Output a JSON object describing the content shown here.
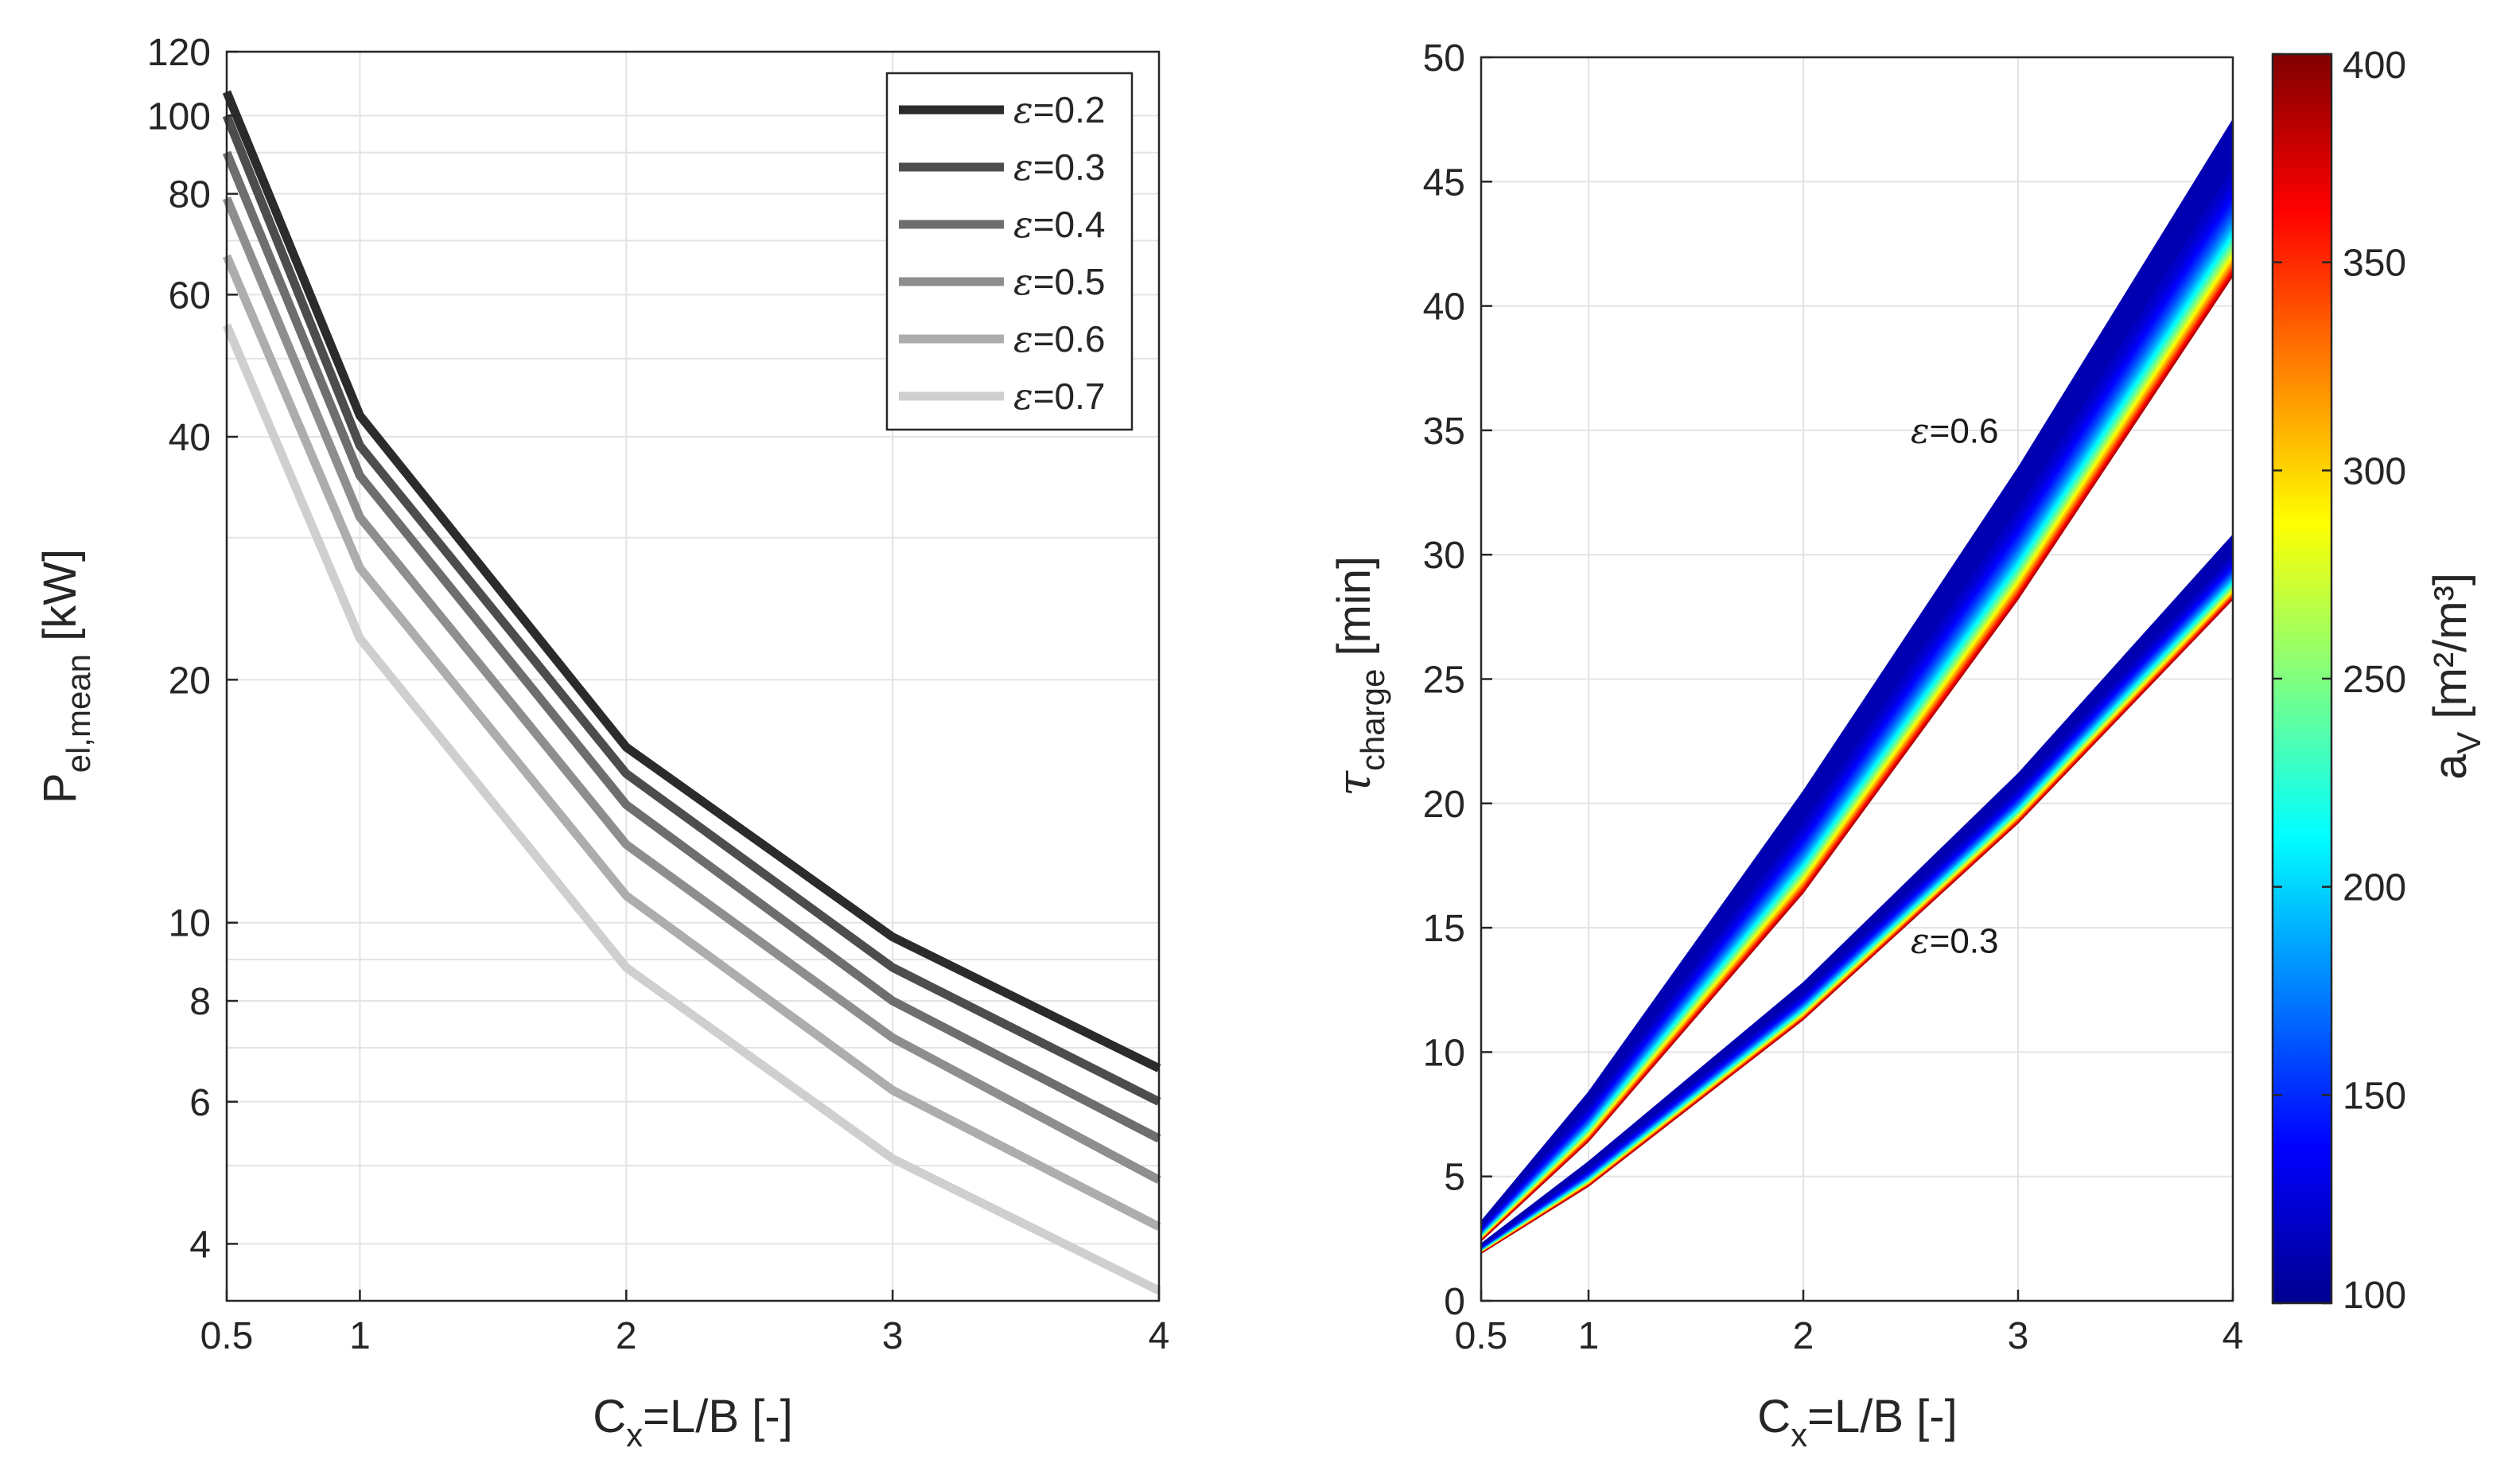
{
  "colors": {
    "grid": "#e3e3e3",
    "axis": "#262626",
    "series": [
      "#2b2b2b",
      "#4d4d4d",
      "#6e6e6e",
      "#8e8e8e",
      "#adadad",
      "#cfcfcf"
    ]
  },
  "chart_data": [
    {
      "type": "line",
      "yscale": "log",
      "title": "",
      "xlabel_main": "C",
      "xlabel_sub": "x",
      "xlabel_rest": "=L/B [-]",
      "ylabel_main": "P",
      "ylabel_sub": "el,mean",
      "ylabel_rest": " [kW]",
      "xlim": [
        0.5,
        4
      ],
      "ylim": [
        3.4,
        120
      ],
      "xticks": [
        0.5,
        1,
        2,
        3,
        4
      ],
      "xtick_labels": [
        "0.5",
        "1",
        "2",
        "3",
        "4"
      ],
      "yticks": [
        4,
        6,
        8,
        10,
        20,
        40,
        60,
        80,
        100,
        120
      ],
      "ytick_labels": [
        "4",
        "6",
        "8",
        "10",
        "20",
        "40",
        "60",
        "80",
        "100",
        "120"
      ],
      "legend_position": "top-right",
      "x": [
        0.5,
        1,
        2,
        3,
        4
      ],
      "series": [
        {
          "name": "ε=0.2",
          "eps_symbol": "ε",
          "eps_value": "=0.2",
          "values": [
            107,
            42.5,
            16.5,
            9.6,
            6.6
          ]
        },
        {
          "name": "ε=0.3",
          "eps_symbol": "ε",
          "eps_value": "=0.3",
          "values": [
            100,
            39.0,
            15.3,
            8.8,
            6.0
          ]
        },
        {
          "name": "ε=0.4",
          "eps_symbol": "ε",
          "eps_value": "=0.4",
          "values": [
            90,
            35.8,
            14.0,
            8.0,
            5.4
          ]
        },
        {
          "name": "ε=0.5",
          "eps_symbol": "ε",
          "eps_value": "=0.5",
          "values": [
            79,
            31.8,
            12.5,
            7.2,
            4.8
          ]
        },
        {
          "name": "ε=0.6",
          "eps_symbol": "ε",
          "eps_value": "=0.6",
          "values": [
            67,
            27.5,
            10.8,
            6.2,
            4.2
          ]
        },
        {
          "name": "ε=0.7",
          "eps_symbol": "ε",
          "eps_value": "=0.7",
          "values": [
            55,
            22.5,
            8.8,
            5.1,
            3.5
          ]
        }
      ]
    },
    {
      "type": "area",
      "title": "",
      "xlabel_main": "C",
      "xlabel_sub": "x",
      "xlabel_rest": "=L/B [-]",
      "ylabel_main": "τ",
      "ylabel_sub": "charge",
      "ylabel_rest": " [min]",
      "xlim": [
        0.5,
        4
      ],
      "ylim": [
        0,
        50
      ],
      "xticks": [
        0.5,
        1,
        2,
        3,
        4
      ],
      "xtick_labels": [
        "0.5",
        "1",
        "2",
        "3",
        "4"
      ],
      "yticks": [
        0,
        5,
        10,
        15,
        20,
        25,
        30,
        35,
        40,
        45,
        50
      ],
      "ytick_labels": [
        "0",
        "5",
        "10",
        "15",
        "20",
        "25",
        "30",
        "35",
        "40",
        "45",
        "50"
      ],
      "x": [
        0.5,
        1,
        2,
        3,
        4
      ],
      "series": [
        {
          "name": "ε=0.6",
          "label_symbol": "ε",
          "label_value": "=0.6",
          "label_at": [
            2.5,
            34.5
          ],
          "upper_av100": [
            3.2,
            8.4,
            20.5,
            33.5,
            47.5
          ],
          "lower_av400": [
            2.4,
            6.4,
            16.4,
            28.2,
            41.2
          ]
        },
        {
          "name": "ε=0.3",
          "label_symbol": "ε",
          "label_value": "=0.3",
          "label_at": [
            2.5,
            14.0
          ],
          "upper_av100": [
            2.3,
            5.6,
            12.8,
            21.2,
            30.8
          ],
          "lower_av400": [
            1.9,
            4.6,
            11.3,
            19.2,
            28.2
          ]
        }
      ],
      "colorbar": {
        "label_main": "a",
        "label_sub": "V",
        "label_rest": " [m²/m³]",
        "range": [
          100,
          400
        ],
        "ticks": [
          100,
          150,
          200,
          250,
          300,
          350,
          400
        ],
        "tick_labels": [
          "100",
          "150",
          "200",
          "250",
          "300",
          "350",
          "400"
        ],
        "colormap": "jet"
      }
    }
  ]
}
